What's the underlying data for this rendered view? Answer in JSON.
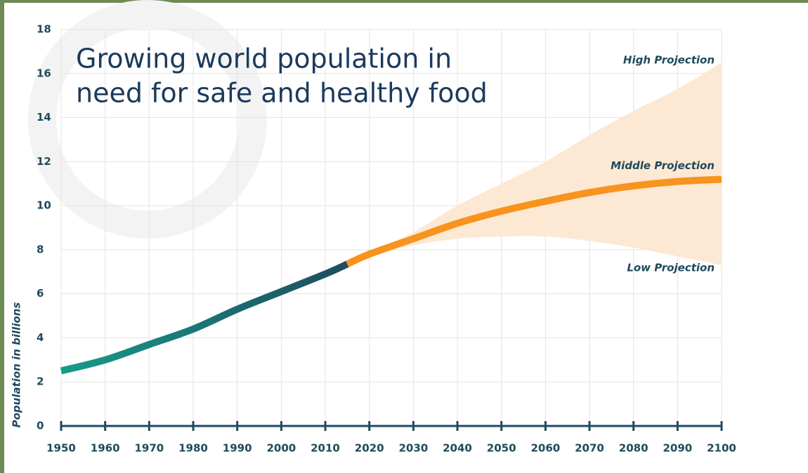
{
  "chart_data": {
    "type": "line",
    "title": [
      "Growing world population in",
      "need for safe and healthy food"
    ],
    "y_label": "Population in billions",
    "xlim": [
      1950,
      2100
    ],
    "xticks": [
      1950,
      1960,
      1970,
      1980,
      1990,
      2000,
      2010,
      2020,
      2030,
      2040,
      2050,
      2060,
      2070,
      2080,
      2090,
      2100
    ],
    "ylim": [
      0,
      18
    ],
    "yticks": [
      0,
      2,
      4,
      6,
      8,
      10,
      12,
      14,
      16,
      18
    ],
    "grid": true,
    "band_color": "#fde8d4",
    "series": [
      {
        "gradient": [
          "#179b8a",
          "#1f4c5e"
        ],
        "x": [
          1950,
          1960,
          1970,
          1980,
          1990,
          2000,
          2010,
          2015
        ],
        "values": [
          2.5,
          3.0,
          3.7,
          4.4,
          5.3,
          6.1,
          6.9,
          7.35
        ]
      },
      {
        "name": "Middle Projection",
        "color": "#f7931e",
        "x": [
          2015,
          2020,
          2030,
          2040,
          2050,
          2060,
          2070,
          2080,
          2090,
          2100
        ],
        "values": [
          7.35,
          7.8,
          8.5,
          9.2,
          9.75,
          10.2,
          10.6,
          10.9,
          11.1,
          11.2
        ]
      },
      {
        "name": "High Projection",
        "band": true,
        "x": [
          2015,
          2020,
          2030,
          2040,
          2050,
          2060,
          2070,
          2080,
          2090,
          2100
        ],
        "values": [
          7.35,
          7.85,
          8.8,
          10.0,
          11.0,
          12.0,
          13.2,
          14.3,
          15.3,
          16.5
        ]
      },
      {
        "name": "Low Projection",
        "band": true,
        "x": [
          2015,
          2020,
          2030,
          2040,
          2050,
          2060,
          2070,
          2080,
          2090,
          2100
        ],
        "values": [
          7.35,
          7.75,
          8.2,
          8.5,
          8.6,
          8.6,
          8.4,
          8.1,
          7.7,
          7.3
        ]
      }
    ]
  }
}
